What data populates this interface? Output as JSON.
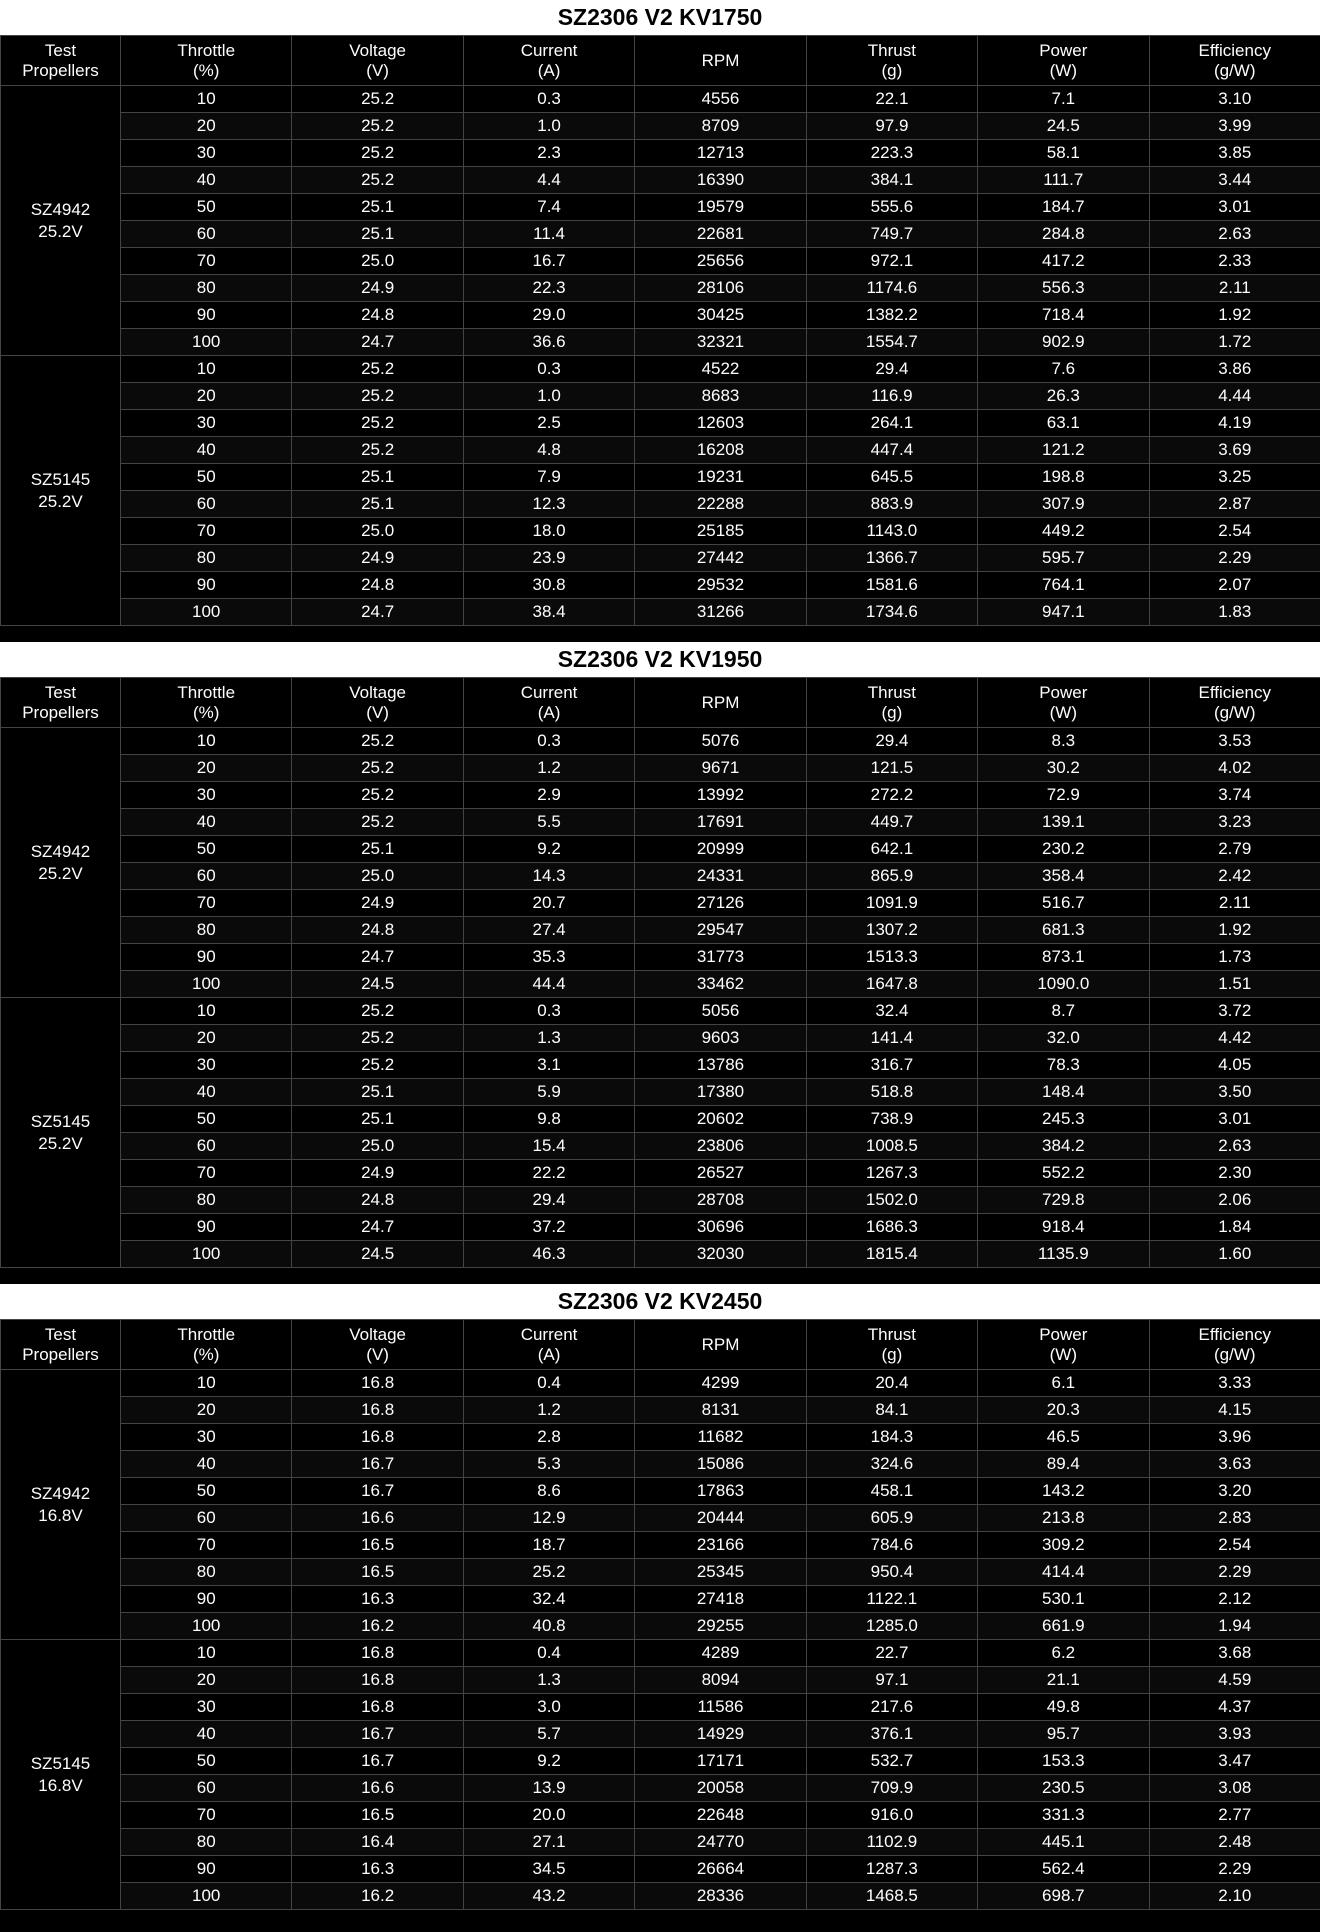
{
  "columns": [
    {
      "h1": "Test",
      "h2": "Propellers"
    },
    {
      "h1": "Throttle",
      "h2": "(%)"
    },
    {
      "h1": "Voltage",
      "h2": "(V)"
    },
    {
      "h1": "Current",
      "h2": "(A)"
    },
    {
      "h1": "RPM",
      "h2": ""
    },
    {
      "h1": "Thrust",
      "h2": "(g)"
    },
    {
      "h1": "Power",
      "h2": "(W)"
    },
    {
      "h1": "Efficiency",
      "h2": "(g/W)"
    }
  ],
  "style": {
    "title_bg": "#ffffff",
    "title_fg": "#000000",
    "title_fontsize": 23,
    "body_bg": "#000000",
    "body_fg": "#ffffff",
    "grid_color": "#444444",
    "row_shade": "#0a0a0a",
    "font_family": "Arial",
    "cell_fontsize": 17,
    "col_prop_width": 120,
    "total_width": 1320
  },
  "sections": [
    {
      "title": "SZ2306 V2 KV1750",
      "groups": [
        {
          "prop": "SZ4942",
          "volt": "25.2V",
          "rows": [
            [
              "10",
              "25.2",
              "0.3",
              "4556",
              "22.1",
              "7.1",
              "3.10"
            ],
            [
              "20",
              "25.2",
              "1.0",
              "8709",
              "97.9",
              "24.5",
              "3.99"
            ],
            [
              "30",
              "25.2",
              "2.3",
              "12713",
              "223.3",
              "58.1",
              "3.85"
            ],
            [
              "40",
              "25.2",
              "4.4",
              "16390",
              "384.1",
              "111.7",
              "3.44"
            ],
            [
              "50",
              "25.1",
              "7.4",
              "19579",
              "555.6",
              "184.7",
              "3.01"
            ],
            [
              "60",
              "25.1",
              "11.4",
              "22681",
              "749.7",
              "284.8",
              "2.63"
            ],
            [
              "70",
              "25.0",
              "16.7",
              "25656",
              "972.1",
              "417.2",
              "2.33"
            ],
            [
              "80",
              "24.9",
              "22.3",
              "28106",
              "1174.6",
              "556.3",
              "2.11"
            ],
            [
              "90",
              "24.8",
              "29.0",
              "30425",
              "1382.2",
              "718.4",
              "1.92"
            ],
            [
              "100",
              "24.7",
              "36.6",
              "32321",
              "1554.7",
              "902.9",
              "1.72"
            ]
          ]
        },
        {
          "prop": "SZ5145",
          "volt": "25.2V",
          "rows": [
            [
              "10",
              "25.2",
              "0.3",
              "4522",
              "29.4",
              "7.6",
              "3.86"
            ],
            [
              "20",
              "25.2",
              "1.0",
              "8683",
              "116.9",
              "26.3",
              "4.44"
            ],
            [
              "30",
              "25.2",
              "2.5",
              "12603",
              "264.1",
              "63.1",
              "4.19"
            ],
            [
              "40",
              "25.2",
              "4.8",
              "16208",
              "447.4",
              "121.2",
              "3.69"
            ],
            [
              "50",
              "25.1",
              "7.9",
              "19231",
              "645.5",
              "198.8",
              "3.25"
            ],
            [
              "60",
              "25.1",
              "12.3",
              "22288",
              "883.9",
              "307.9",
              "2.87"
            ],
            [
              "70",
              "25.0",
              "18.0",
              "25185",
              "1143.0",
              "449.2",
              "2.54"
            ],
            [
              "80",
              "24.9",
              "23.9",
              "27442",
              "1366.7",
              "595.7",
              "2.29"
            ],
            [
              "90",
              "24.8",
              "30.8",
              "29532",
              "1581.6",
              "764.1",
              "2.07"
            ],
            [
              "100",
              "24.7",
              "38.4",
              "31266",
              "1734.6",
              "947.1",
              "1.83"
            ]
          ]
        }
      ]
    },
    {
      "title": "SZ2306 V2 KV1950",
      "groups": [
        {
          "prop": "SZ4942",
          "volt": "25.2V",
          "rows": [
            [
              "10",
              "25.2",
              "0.3",
              "5076",
              "29.4",
              "8.3",
              "3.53"
            ],
            [
              "20",
              "25.2",
              "1.2",
              "9671",
              "121.5",
              "30.2",
              "4.02"
            ],
            [
              "30",
              "25.2",
              "2.9",
              "13992",
              "272.2",
              "72.9",
              "3.74"
            ],
            [
              "40",
              "25.2",
              "5.5",
              "17691",
              "449.7",
              "139.1",
              "3.23"
            ],
            [
              "50",
              "25.1",
              "9.2",
              "20999",
              "642.1",
              "230.2",
              "2.79"
            ],
            [
              "60",
              "25.0",
              "14.3",
              "24331",
              "865.9",
              "358.4",
              "2.42"
            ],
            [
              "70",
              "24.9",
              "20.7",
              "27126",
              "1091.9",
              "516.7",
              "2.11"
            ],
            [
              "80",
              "24.8",
              "27.4",
              "29547",
              "1307.2",
              "681.3",
              "1.92"
            ],
            [
              "90",
              "24.7",
              "35.3",
              "31773",
              "1513.3",
              "873.1",
              "1.73"
            ],
            [
              "100",
              "24.5",
              "44.4",
              "33462",
              "1647.8",
              "1090.0",
              "1.51"
            ]
          ]
        },
        {
          "prop": "SZ5145",
          "volt": "25.2V",
          "rows": [
            [
              "10",
              "25.2",
              "0.3",
              "5056",
              "32.4",
              "8.7",
              "3.72"
            ],
            [
              "20",
              "25.2",
              "1.3",
              "9603",
              "141.4",
              "32.0",
              "4.42"
            ],
            [
              "30",
              "25.2",
              "3.1",
              "13786",
              "316.7",
              "78.3",
              "4.05"
            ],
            [
              "40",
              "25.1",
              "5.9",
              "17380",
              "518.8",
              "148.4",
              "3.50"
            ],
            [
              "50",
              "25.1",
              "9.8",
              "20602",
              "738.9",
              "245.3",
              "3.01"
            ],
            [
              "60",
              "25.0",
              "15.4",
              "23806",
              "1008.5",
              "384.2",
              "2.63"
            ],
            [
              "70",
              "24.9",
              "22.2",
              "26527",
              "1267.3",
              "552.2",
              "2.30"
            ],
            [
              "80",
              "24.8",
              "29.4",
              "28708",
              "1502.0",
              "729.8",
              "2.06"
            ],
            [
              "90",
              "24.7",
              "37.2",
              "30696",
              "1686.3",
              "918.4",
              "1.84"
            ],
            [
              "100",
              "24.5",
              "46.3",
              "32030",
              "1815.4",
              "1135.9",
              "1.60"
            ]
          ]
        }
      ]
    },
    {
      "title": "SZ2306 V2 KV2450",
      "groups": [
        {
          "prop": "SZ4942",
          "volt": "16.8V",
          "rows": [
            [
              "10",
              "16.8",
              "0.4",
              "4299",
              "20.4",
              "6.1",
              "3.33"
            ],
            [
              "20",
              "16.8",
              "1.2",
              "8131",
              "84.1",
              "20.3",
              "4.15"
            ],
            [
              "30",
              "16.8",
              "2.8",
              "11682",
              "184.3",
              "46.5",
              "3.96"
            ],
            [
              "40",
              "16.7",
              "5.3",
              "15086",
              "324.6",
              "89.4",
              "3.63"
            ],
            [
              "50",
              "16.7",
              "8.6",
              "17863",
              "458.1",
              "143.2",
              "3.20"
            ],
            [
              "60",
              "16.6",
              "12.9",
              "20444",
              "605.9",
              "213.8",
              "2.83"
            ],
            [
              "70",
              "16.5",
              "18.7",
              "23166",
              "784.6",
              "309.2",
              "2.54"
            ],
            [
              "80",
              "16.5",
              "25.2",
              "25345",
              "950.4",
              "414.4",
              "2.29"
            ],
            [
              "90",
              "16.3",
              "32.4",
              "27418",
              "1122.1",
              "530.1",
              "2.12"
            ],
            [
              "100",
              "16.2",
              "40.8",
              "29255",
              "1285.0",
              "661.9",
              "1.94"
            ]
          ]
        },
        {
          "prop": "SZ5145",
          "volt": "16.8V",
          "rows": [
            [
              "10",
              "16.8",
              "0.4",
              "4289",
              "22.7",
              "6.2",
              "3.68"
            ],
            [
              "20",
              "16.8",
              "1.3",
              "8094",
              "97.1",
              "21.1",
              "4.59"
            ],
            [
              "30",
              "16.8",
              "3.0",
              "11586",
              "217.6",
              "49.8",
              "4.37"
            ],
            [
              "40",
              "16.7",
              "5.7",
              "14929",
              "376.1",
              "95.7",
              "3.93"
            ],
            [
              "50",
              "16.7",
              "9.2",
              "17171",
              "532.7",
              "153.3",
              "3.47"
            ],
            [
              "60",
              "16.6",
              "13.9",
              "20058",
              "709.9",
              "230.5",
              "3.08"
            ],
            [
              "70",
              "16.5",
              "20.0",
              "22648",
              "916.0",
              "331.3",
              "2.77"
            ],
            [
              "80",
              "16.4",
              "27.1",
              "24770",
              "1102.9",
              "445.1",
              "2.48"
            ],
            [
              "90",
              "16.3",
              "34.5",
              "26664",
              "1287.3",
              "562.4",
              "2.29"
            ],
            [
              "100",
              "16.2",
              "43.2",
              "28336",
              "1468.5",
              "698.7",
              "2.10"
            ]
          ]
        }
      ]
    }
  ]
}
